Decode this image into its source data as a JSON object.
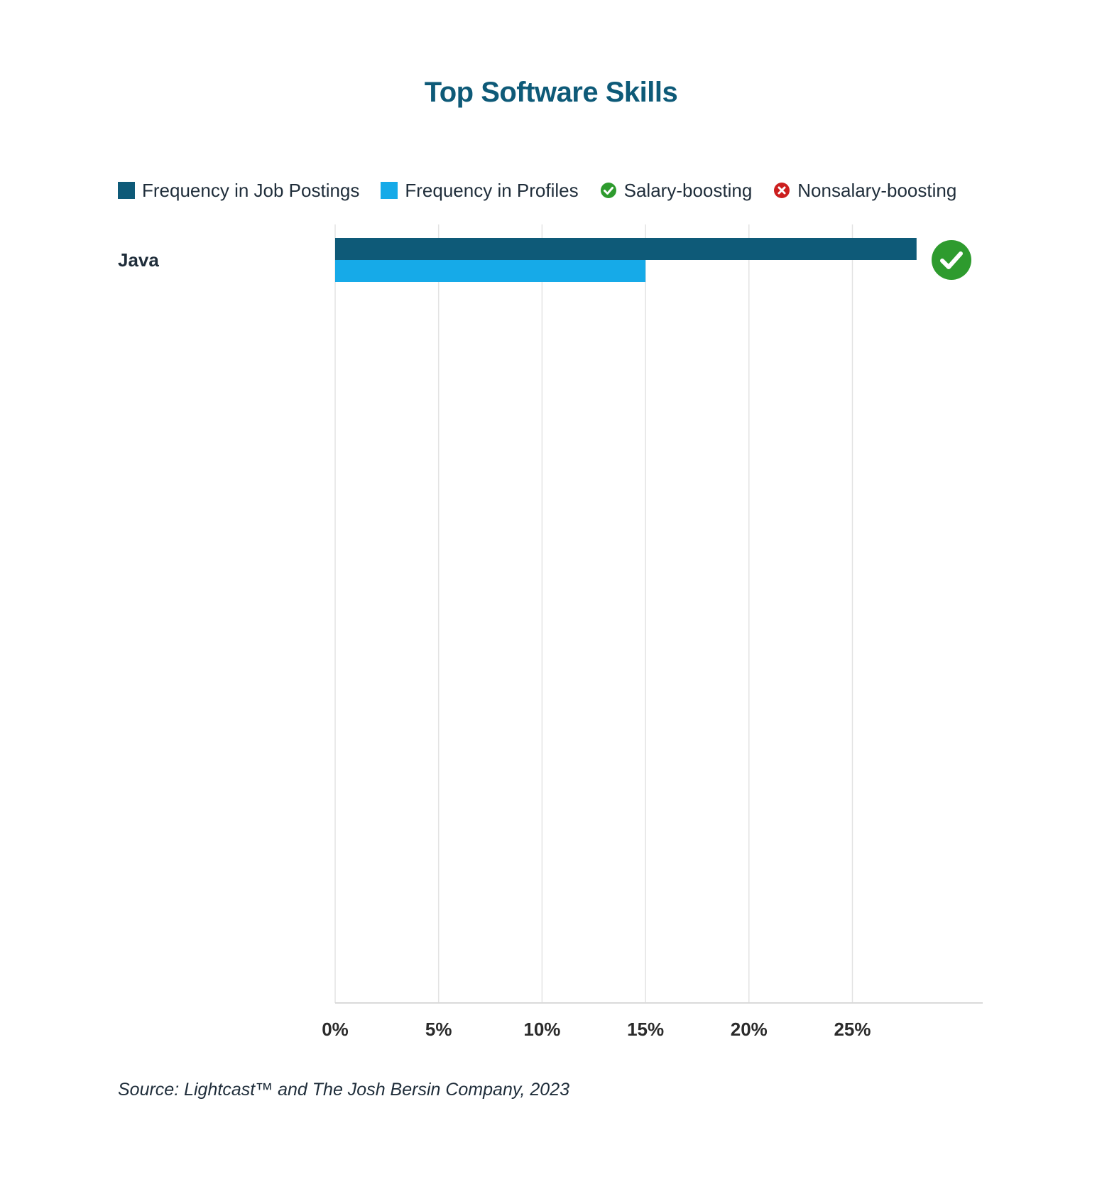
{
  "title": "Top Software Skills",
  "legend": {
    "job_postings": "Frequency in Job Postings",
    "profiles": "Frequency in Profiles",
    "salary_boosting": "Salary-boosting",
    "nonsalary_boosting": "Nonsalary-boosting"
  },
  "source": "Source: Lightcast™ and The Josh Bersin Company, 2023",
  "colors": {
    "job_postings": "#0e5a78",
    "profiles": "#16aae8",
    "salary_boosting": "#2e9b2e",
    "nonsalary_boosting": "#cc1f1f",
    "title": "#0e5a78",
    "grid": "#e3e3e3"
  },
  "chart_data": {
    "type": "bar",
    "orientation": "horizontal",
    "title": "Top Software Skills",
    "xlabel": "",
    "ylabel": "",
    "xlim": [
      0,
      30
    ],
    "x_ticks": [
      "0%",
      "5%",
      "10%",
      "15%",
      "20%",
      "25%"
    ],
    "x_tick_values": [
      0,
      5,
      10,
      15,
      20,
      25
    ],
    "categories": [
      "Java"
    ],
    "series": [
      {
        "name": "Frequency in Job Postings",
        "values": [
          28.1
        ]
      },
      {
        "name": "Frequency in Profiles",
        "values": [
          15.0
        ]
      }
    ],
    "markers": [
      "salary-boosting"
    ]
  }
}
